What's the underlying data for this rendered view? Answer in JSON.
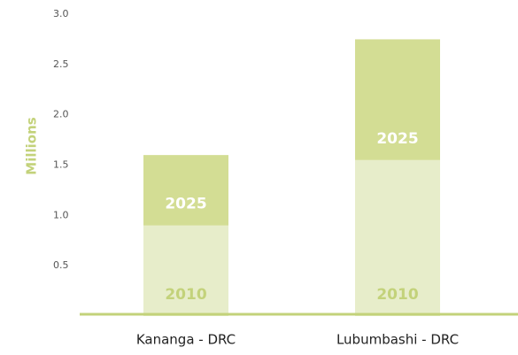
{
  "chart_data": {
    "type": "stacked_bar",
    "y_label": "Millions",
    "categories": [
      "Kananga - DRC",
      "Lubumbashi - DRC"
    ],
    "series": [
      {
        "name": "2010",
        "color": "#e7edca",
        "label_color": "#c3d27a",
        "values": [
          0.9,
          1.55
        ]
      },
      {
        "name": "2025",
        "color": "#d3dd94",
        "label_color": "#ffffff",
        "values": [
          0.7,
          1.2
        ]
      }
    ],
    "ylim": [
      0,
      3
    ],
    "yticks": [
      0.5,
      {
        "value": 1,
        "label": "1.0"
      },
      1.5,
      {
        "value": 2,
        "label": "2.0"
      },
      2.5,
      {
        "value": 3,
        "label": "3.0"
      }
    ],
    "axis_color": "#c3d27a"
  }
}
